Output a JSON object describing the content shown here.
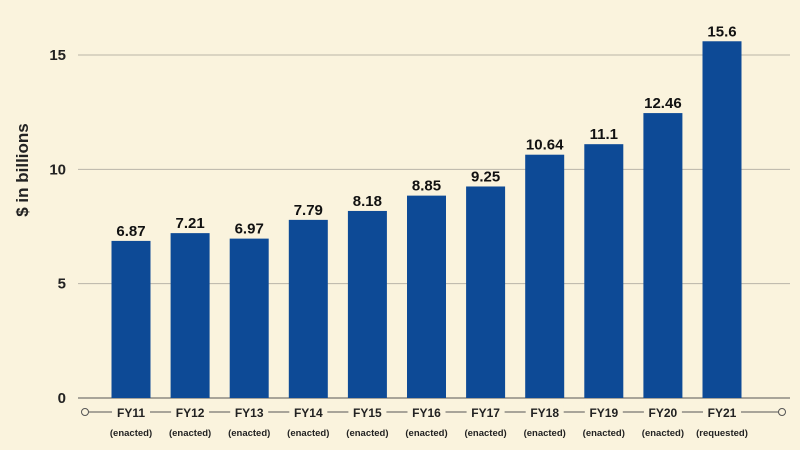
{
  "chart_data": {
    "type": "bar",
    "ylabel": "$ in billions",
    "ylim": [
      0,
      17
    ],
    "yticks": [
      0,
      5,
      10,
      15
    ],
    "grid": true,
    "categories": [
      "FY11",
      "FY12",
      "FY13",
      "FY14",
      "FY15",
      "FY16",
      "FY17",
      "FY18",
      "FY19",
      "FY20",
      "FY21"
    ],
    "sublabels": [
      "(enacted)",
      "(enacted)",
      "(enacted)",
      "(enacted)",
      "(enacted)",
      "(enacted)",
      "(enacted)",
      "(enacted)",
      "(enacted)",
      "(enacted)",
      "(requested)"
    ],
    "values": [
      6.87,
      7.21,
      6.97,
      7.79,
      8.18,
      8.85,
      9.25,
      10.64,
      11.1,
      12.46,
      15.6
    ],
    "value_labels": [
      "6.87",
      "7.21",
      "6.97",
      "7.79",
      "8.18",
      "8.85",
      "9.25",
      "10.64",
      "11.1",
      "12.46",
      "15.6"
    ],
    "colors": {
      "bar": "#0d4a96",
      "background": "#faf3dd",
      "grid": "#b9b5a8",
      "axis": "#555555"
    }
  }
}
